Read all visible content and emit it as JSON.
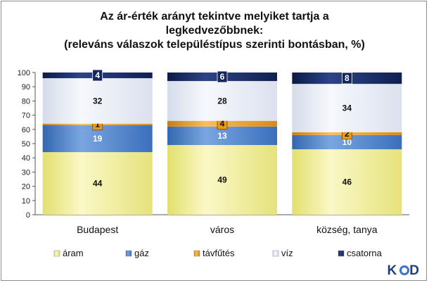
{
  "chart_data": {
    "type": "bar",
    "stacked": true,
    "title": [
      "Az ár-érték arányt tekintve melyiket tartja a",
      "legkedvezőbbnek:",
      "(releváns válaszok településtípus szerinti bontásban, %)"
    ],
    "categories": [
      "Budapest",
      "város",
      "község, tanya"
    ],
    "ylim": [
      0,
      100
    ],
    "yticks": [
      "0",
      "10",
      "20",
      "30",
      "40",
      "50",
      "60",
      "70",
      "80",
      "90",
      "100"
    ],
    "grid": false,
    "legend_position": "bottom",
    "series": [
      {
        "name": "áram",
        "values": [
          44,
          49,
          46
        ],
        "color": "#f2f0a0"
      },
      {
        "name": "gáz",
        "values": [
          19,
          13,
          10
        ],
        "color": "#4a7ec8"
      },
      {
        "name": "távfűtés",
        "values": [
          1,
          4,
          2
        ],
        "color": "#e59a1c"
      },
      {
        "name": "víz",
        "values": [
          32,
          28,
          34
        ],
        "color": "#e9edf5"
      },
      {
        "name": "csatorna",
        "values": [
          4,
          6,
          8
        ],
        "color": "#15275a"
      }
    ]
  },
  "logo_text": "KÓD"
}
